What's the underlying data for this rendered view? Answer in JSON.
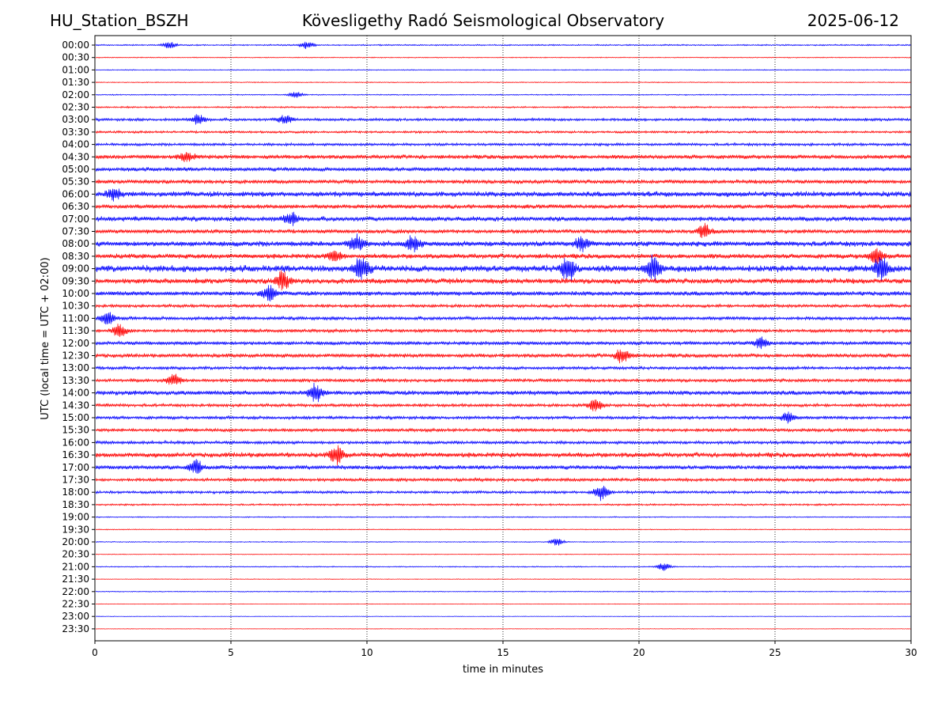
{
  "header": {
    "station": "HU_Station_BSZH",
    "observatory": "Kövesligethy Radó Seismological Observatory",
    "date": "2025-06-12"
  },
  "chart_data": {
    "type": "line",
    "title": "Kövesligethy Radó Seismological Observatory",
    "xlabel": "time in minutes",
    "ylabel": "UTC (local time = UTC + 02:00)",
    "xlim": [
      0,
      30
    ],
    "xticks": [
      0,
      5,
      10,
      15,
      20,
      25,
      30
    ],
    "grid": "vertical dotted at x ticks",
    "row_labels": [
      "00:00",
      "00:30",
      "01:00",
      "01:30",
      "02:00",
      "02:30",
      "03:00",
      "03:30",
      "04:00",
      "04:30",
      "05:00",
      "05:30",
      "06:00",
      "06:30",
      "07:00",
      "07:30",
      "08:00",
      "08:30",
      "09:00",
      "09:30",
      "10:00",
      "10:30",
      "11:00",
      "11:30",
      "12:00",
      "12:30",
      "13:00",
      "13:30",
      "14:00",
      "14:30",
      "15:00",
      "15:30",
      "16:00",
      "16:30",
      "17:00",
      "17:30",
      "18:00",
      "18:30",
      "19:00",
      "19:30",
      "20:00",
      "20:30",
      "21:00",
      "21:30",
      "22:00",
      "22:30",
      "23:00",
      "23:30"
    ],
    "row_colors": [
      "#0000ff",
      "#ff0000"
    ],
    "row_amplitude": [
      0.15,
      0.1,
      0.1,
      0.1,
      0.12,
      0.18,
      0.3,
      0.25,
      0.3,
      0.45,
      0.45,
      0.45,
      0.6,
      0.45,
      0.55,
      0.45,
      0.6,
      0.55,
      0.75,
      0.6,
      0.5,
      0.35,
      0.4,
      0.35,
      0.4,
      0.45,
      0.35,
      0.35,
      0.5,
      0.35,
      0.35,
      0.35,
      0.35,
      0.55,
      0.45,
      0.35,
      0.3,
      0.2,
      0.12,
      0.1,
      0.1,
      0.08,
      0.12,
      0.08,
      0.1,
      0.06,
      0.06,
      0.06
    ],
    "events": [
      {
        "row": "00:00",
        "x": 2.75,
        "amp": 0.4
      },
      {
        "row": "00:00",
        "x": 7.8,
        "amp": 0.5
      },
      {
        "row": "02:00",
        "x": 7.4,
        "amp": 0.4
      },
      {
        "row": "03:00",
        "x": 3.8,
        "amp": 0.7
      },
      {
        "row": "03:00",
        "x": 7.0,
        "amp": 0.7
      },
      {
        "row": "04:30",
        "x": 3.4,
        "amp": 0.7
      },
      {
        "row": "06:00",
        "x": 0.7,
        "amp": 0.9
      },
      {
        "row": "07:00",
        "x": 7.2,
        "amp": 0.9
      },
      {
        "row": "07:30",
        "x": 22.4,
        "amp": 1.0
      },
      {
        "row": "08:00",
        "x": 9.6,
        "amp": 1.2
      },
      {
        "row": "08:00",
        "x": 11.7,
        "amp": 1.0
      },
      {
        "row": "08:00",
        "x": 17.9,
        "amp": 0.9
      },
      {
        "row": "08:30",
        "x": 8.8,
        "amp": 0.8
      },
      {
        "row": "08:30",
        "x": 28.7,
        "amp": 1.0
      },
      {
        "row": "09:00",
        "x": 9.8,
        "amp": 1.6
      },
      {
        "row": "09:00",
        "x": 17.4,
        "amp": 1.6
      },
      {
        "row": "09:00",
        "x": 20.5,
        "amp": 1.8
      },
      {
        "row": "09:00",
        "x": 28.9,
        "amp": 1.6
      },
      {
        "row": "09:30",
        "x": 6.9,
        "amp": 1.2
      },
      {
        "row": "10:00",
        "x": 6.4,
        "amp": 1.0
      },
      {
        "row": "11:00",
        "x": 0.45,
        "amp": 0.9
      },
      {
        "row": "11:30",
        "x": 0.9,
        "amp": 0.9
      },
      {
        "row": "12:00",
        "x": 24.5,
        "amp": 0.8
      },
      {
        "row": "12:30",
        "x": 19.4,
        "amp": 1.0
      },
      {
        "row": "13:30",
        "x": 2.9,
        "amp": 0.8
      },
      {
        "row": "14:00",
        "x": 8.1,
        "amp": 1.3
      },
      {
        "row": "14:30",
        "x": 18.4,
        "amp": 0.8
      },
      {
        "row": "15:00",
        "x": 25.5,
        "amp": 0.8
      },
      {
        "row": "16:30",
        "x": 8.9,
        "amp": 1.2
      },
      {
        "row": "17:00",
        "x": 3.7,
        "amp": 1.0
      },
      {
        "row": "18:00",
        "x": 18.6,
        "amp": 1.1
      },
      {
        "row": "20:00",
        "x": 17.0,
        "amp": 0.5
      },
      {
        "row": "21:00",
        "x": 20.9,
        "amp": 0.5
      }
    ]
  }
}
